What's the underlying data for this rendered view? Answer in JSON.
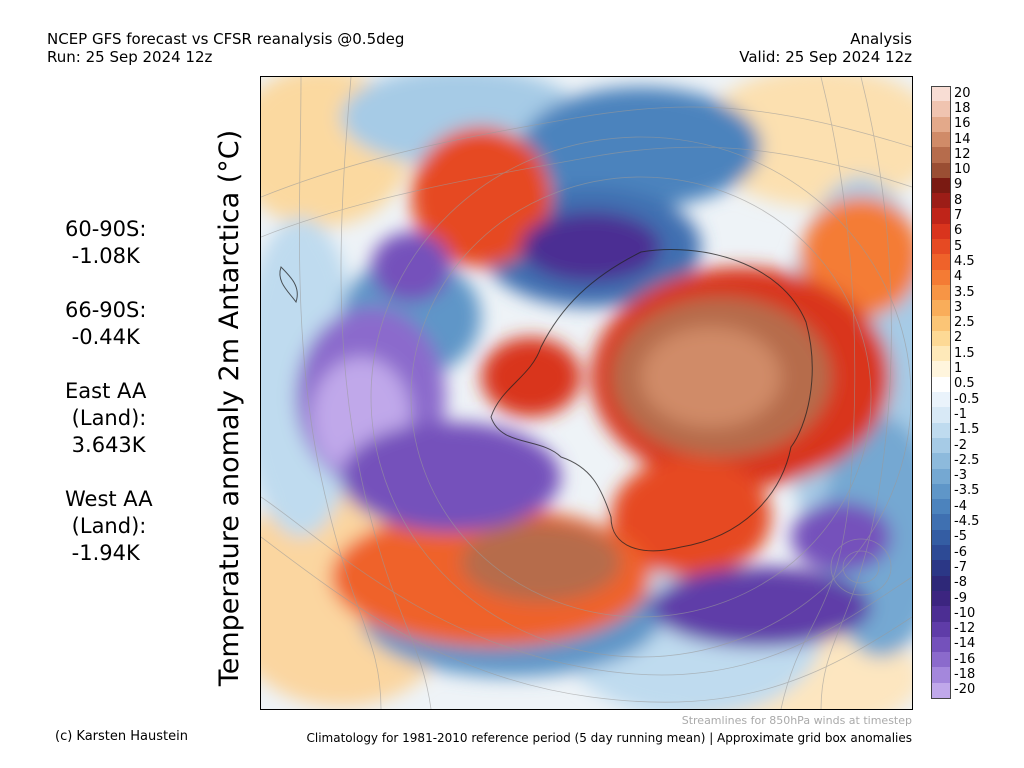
{
  "header": {
    "line1_left": "NCEP GFS forecast vs CFSR reanalysis @0.5deg",
    "line2_left": "Run: 25 Sep 2024 12z",
    "line1_right": "Analysis",
    "line2_right": "Valid: 25 Sep 2024 12z"
  },
  "map": {
    "title": "Temperature anomaly 2m Antarctica (°C)",
    "projection": "polar-stereographic-south",
    "streamline_note": "Streamlines for 850hPa winds at timestep"
  },
  "stats": [
    {
      "text": "60-90S:\n -1.08K"
    },
    {
      "text": "66-90S:\n -0.44K"
    },
    {
      "text": "East AA\n (Land):\n 3.643K"
    },
    {
      "text": "West AA\n (Land):\n -1.94K"
    }
  ],
  "colorbar": {
    "labels": [
      "20",
      "18",
      "16",
      "14",
      "12",
      "10",
      "9",
      "8",
      "7",
      "6",
      "5",
      "4.5",
      "4",
      "3.5",
      "3",
      "2.5",
      "2",
      "1.5",
      "1",
      "0.5",
      "-0.5",
      "-1",
      "-1.5",
      "-2",
      "-2.5",
      "-3",
      "-3.5",
      "-4",
      "-4.5",
      "-5",
      "-6",
      "-7",
      "-8",
      "-9",
      "-10",
      "-12",
      "-14",
      "-16",
      "-18",
      "-20"
    ],
    "colors": [
      "#f8ddd4",
      "#f0c4b0",
      "#e3a98a",
      "#d08b68",
      "#b66c4c",
      "#9a4e33",
      "#7a1a12",
      "#9c1d17",
      "#bf2419",
      "#d9341d",
      "#e64a23",
      "#ef622a",
      "#f47b34",
      "#f79545",
      "#f9ad5a",
      "#fbc576",
      "#fdd995",
      "#fee9b9",
      "#fff5dd",
      "#ffffff",
      "#eaf3fb",
      "#d8e9f6",
      "#bfdbef",
      "#a6cbe6",
      "#8dbadc",
      "#75a8d2",
      "#5f96c8",
      "#4c83bd",
      "#3f70b1",
      "#345da3",
      "#2d4a95",
      "#2b3786",
      "#2e2878",
      "#3c2580",
      "#4c2e93",
      "#5f3ca8",
      "#7451bb",
      "#8b6acc",
      "#a487dc",
      "#c0a8ea"
    ]
  },
  "footer": {
    "left": "(c) Karsten Haustein",
    "right": "Climatology for 1981-2010 reference period (5 day running mean) | Approximate grid box anomalies"
  }
}
